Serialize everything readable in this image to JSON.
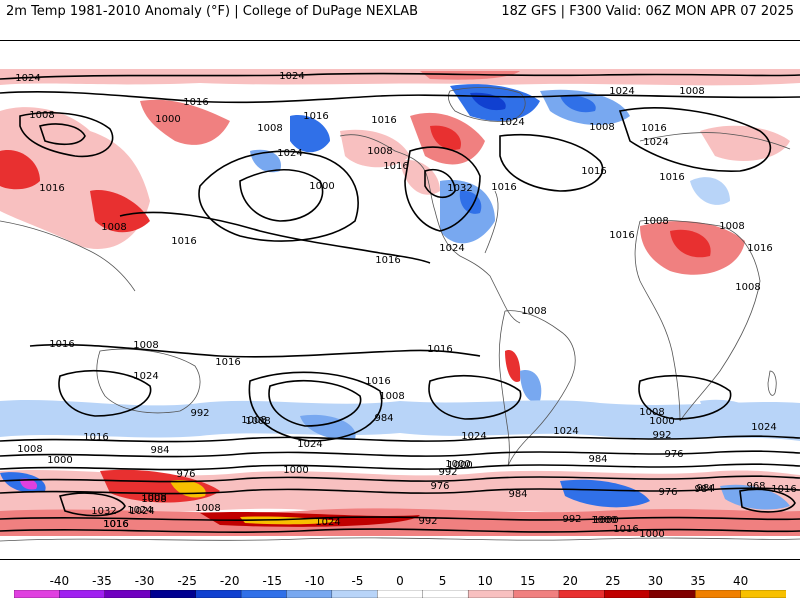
{
  "header": {
    "left_title": "2m Temp 1981-2010 Anomaly (°F) | College of DuPage NEXLAB",
    "right_title": "18Z GFS | F300 Valid: 06Z MON APR 07 2025"
  },
  "colorbar": {
    "ticks": [
      "-40",
      "-35",
      "-30",
      "-25",
      "-20",
      "-15",
      "-10",
      "-5",
      "0",
      "5",
      "10",
      "15",
      "20",
      "25",
      "30",
      "35",
      "40"
    ],
    "colors": [
      "#e040e0",
      "#a020f0",
      "#7000c0",
      "#000090",
      "#1040d0",
      "#3070e8",
      "#78a8f0",
      "#b8d4f8",
      "#ffffff",
      "#ffffff",
      "#f8c0c0",
      "#f08080",
      "#e83030",
      "#c00000",
      "#800000",
      "#f08000",
      "#f8c000"
    ]
  },
  "map": {
    "colors": {
      "land": "#ffffff",
      "warm1": "#f8c0c0",
      "warm2": "#f08080",
      "warm3": "#e83030",
      "warm4": "#c00000",
      "warm5": "#f8c000",
      "cold1": "#b8d4f8",
      "cold2": "#78a8f0",
      "cold3": "#3070e8",
      "cold4": "#1040d0",
      "cold5": "#e040e0"
    },
    "contour_labels": [
      "1024",
      "1024",
      "1016",
      "1008",
      "1000",
      "1008",
      "1016",
      "1016",
      "1024",
      "1000",
      "1016",
      "1008",
      "1016",
      "1024",
      "1024",
      "1016",
      "1008",
      "1016",
      "1008",
      "1016",
      "1024",
      "1032",
      "1016",
      "1008",
      "1024",
      "1016",
      "1016",
      "1016",
      "1016",
      "1008",
      "1008",
      "1008",
      "1008",
      "1008",
      "1016",
      "1016",
      "1016",
      "1024",
      "1008",
      "1016",
      "1024",
      "992",
      "1008",
      "1016",
      "1008",
      "984",
      "1024",
      "1024",
      "1024",
      "1008",
      "1000",
      "1008",
      "992",
      "1000",
      "984",
      "976",
      "976",
      "984",
      "1024",
      "1032",
      "1016",
      "1000",
      "1000",
      "992",
      "1008",
      "984",
      "992",
      "1000",
      "984",
      "976",
      "1000",
      "984",
      "976",
      "1016",
      "968",
      "1016",
      "1016",
      "1000",
      "992",
      "1024",
      "1008",
      "1000",
      "1024",
      "1016",
      "1008"
    ]
  }
}
